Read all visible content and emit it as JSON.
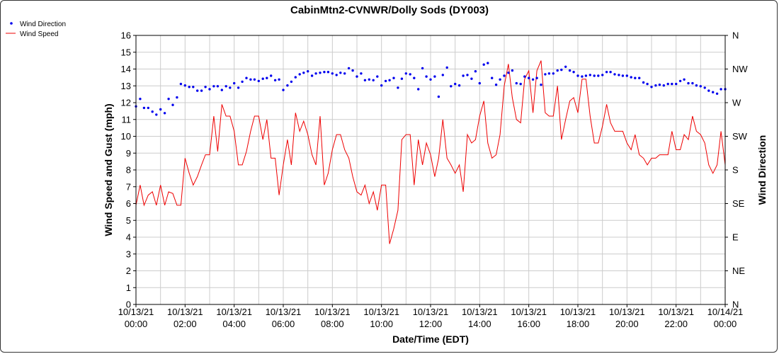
{
  "chart_data": {
    "type": "line",
    "title": "CabinMtn2-CVNWR/Dolly Sods (DY003)",
    "xlabel": "Date/Time (EDT)",
    "ylabel": "Wind Speed and Gust (mph)",
    "y2label": "Wind Direction",
    "ylim": [
      0,
      16
    ],
    "y2lim": [
      0,
      360
    ],
    "xlim_hours": [
      0,
      24
    ],
    "grid": true,
    "legend_position": "top-left",
    "colors": {
      "wind_direction": "#0000ee",
      "wind_speed": "#ee0000"
    },
    "y_ticks": [
      "0",
      "1",
      "2",
      "3",
      "4",
      "5",
      "6",
      "7",
      "8",
      "9",
      "10",
      "11",
      "12",
      "13",
      "14",
      "15",
      "16"
    ],
    "y2_ticks": [
      "N",
      "NE",
      "E",
      "SE",
      "S",
      "SW",
      "W",
      "NW",
      "N"
    ],
    "x_ticks": [
      {
        "date": "10/13/21",
        "time": "00:00"
      },
      {
        "date": "10/13/21",
        "time": "02:00"
      },
      {
        "date": "10/13/21",
        "time": "04:00"
      },
      {
        "date": "10/13/21",
        "time": "06:00"
      },
      {
        "date": "10/13/21",
        "time": "08:00"
      },
      {
        "date": "10/13/21",
        "time": "10:00"
      },
      {
        "date": "10/13/21",
        "time": "12:00"
      },
      {
        "date": "10/13/21",
        "time": "14:00"
      },
      {
        "date": "10/13/21",
        "time": "16:00"
      },
      {
        "date": "10/13/21",
        "time": "18:00"
      },
      {
        "date": "10/13/21",
        "time": "20:00"
      },
      {
        "date": "10/13/21",
        "time": "22:00"
      },
      {
        "date": "10/14/21",
        "time": "00:00"
      }
    ],
    "series": [
      {
        "name": "Wind Speed",
        "style": "line",
        "axis": "left",
        "points": [
          [
            0.0,
            5.9
          ],
          [
            0.17,
            7.1
          ],
          [
            0.33,
            5.9
          ],
          [
            0.5,
            6.5
          ],
          [
            0.67,
            6.7
          ],
          [
            0.83,
            5.9
          ],
          [
            1.0,
            7.1
          ],
          [
            1.17,
            5.9
          ],
          [
            1.33,
            6.7
          ],
          [
            1.5,
            6.6
          ],
          [
            1.67,
            5.9
          ],
          [
            1.83,
            5.9
          ],
          [
            2.0,
            8.7
          ],
          [
            2.17,
            7.8
          ],
          [
            2.33,
            7.1
          ],
          [
            2.5,
            7.6
          ],
          [
            2.67,
            8.3
          ],
          [
            2.83,
            8.9
          ],
          [
            3.0,
            8.9
          ],
          [
            3.17,
            11.2
          ],
          [
            3.33,
            9.1
          ],
          [
            3.5,
            11.9
          ],
          [
            3.67,
            11.2
          ],
          [
            3.83,
            11.2
          ],
          [
            4.0,
            10.3
          ],
          [
            4.17,
            8.3
          ],
          [
            4.33,
            8.3
          ],
          [
            4.5,
            9.1
          ],
          [
            4.67,
            10.3
          ],
          [
            4.83,
            11.2
          ],
          [
            5.0,
            11.2
          ],
          [
            5.17,
            9.8
          ],
          [
            5.33,
            11.0
          ],
          [
            5.5,
            8.7
          ],
          [
            5.67,
            8.7
          ],
          [
            5.83,
            6.5
          ],
          [
            6.0,
            8.3
          ],
          [
            6.17,
            9.8
          ],
          [
            6.33,
            8.3
          ],
          [
            6.5,
            11.4
          ],
          [
            6.67,
            10.3
          ],
          [
            6.83,
            10.9
          ],
          [
            7.0,
            10.1
          ],
          [
            7.17,
            8.9
          ],
          [
            7.33,
            8.3
          ],
          [
            7.5,
            11.2
          ],
          [
            7.67,
            7.1
          ],
          [
            7.83,
            7.8
          ],
          [
            8.0,
            9.2
          ],
          [
            8.17,
            10.1
          ],
          [
            8.33,
            10.1
          ],
          [
            8.5,
            9.2
          ],
          [
            8.67,
            8.7
          ],
          [
            8.83,
            7.6
          ],
          [
            9.0,
            6.7
          ],
          [
            9.17,
            6.5
          ],
          [
            9.33,
            7.1
          ],
          [
            9.5,
            6.0
          ],
          [
            9.67,
            6.7
          ],
          [
            9.83,
            5.6
          ],
          [
            10.0,
            7.1
          ],
          [
            10.17,
            7.1
          ],
          [
            10.33,
            3.6
          ],
          [
            10.5,
            4.5
          ],
          [
            10.67,
            5.6
          ],
          [
            10.83,
            9.8
          ],
          [
            11.0,
            10.1
          ],
          [
            11.17,
            10.1
          ],
          [
            11.33,
            7.1
          ],
          [
            11.5,
            9.8
          ],
          [
            11.67,
            8.3
          ],
          [
            11.83,
            9.6
          ],
          [
            12.0,
            8.9
          ],
          [
            12.17,
            7.6
          ],
          [
            12.33,
            8.7
          ],
          [
            12.5,
            11.0
          ],
          [
            12.67,
            8.7
          ],
          [
            12.83,
            8.3
          ],
          [
            13.0,
            7.8
          ],
          [
            13.17,
            8.3
          ],
          [
            13.33,
            6.7
          ],
          [
            13.5,
            10.1
          ],
          [
            13.67,
            9.6
          ],
          [
            13.83,
            9.8
          ],
          [
            14.0,
            11.2
          ],
          [
            14.17,
            12.1
          ],
          [
            14.33,
            9.6
          ],
          [
            14.5,
            8.7
          ],
          [
            14.67,
            8.9
          ],
          [
            14.83,
            10.1
          ],
          [
            15.0,
            13.0
          ],
          [
            15.17,
            14.3
          ],
          [
            15.33,
            12.3
          ],
          [
            15.5,
            11.0
          ],
          [
            15.67,
            10.8
          ],
          [
            15.83,
            13.4
          ],
          [
            16.0,
            13.9
          ],
          [
            16.17,
            11.4
          ],
          [
            16.33,
            13.9
          ],
          [
            16.5,
            14.5
          ],
          [
            16.67,
            11.4
          ],
          [
            16.83,
            11.2
          ],
          [
            17.0,
            11.2
          ],
          [
            17.17,
            13.0
          ],
          [
            17.33,
            9.8
          ],
          [
            17.5,
            11.0
          ],
          [
            17.67,
            12.1
          ],
          [
            17.83,
            12.3
          ],
          [
            18.0,
            11.4
          ],
          [
            18.17,
            13.4
          ],
          [
            18.33,
            13.4
          ],
          [
            18.5,
            11.2
          ],
          [
            18.67,
            9.6
          ],
          [
            18.83,
            9.6
          ],
          [
            19.0,
            10.6
          ],
          [
            19.17,
            11.9
          ],
          [
            19.33,
            10.8
          ],
          [
            19.5,
            10.3
          ],
          [
            19.67,
            10.3
          ],
          [
            19.83,
            10.3
          ],
          [
            20.0,
            9.6
          ],
          [
            20.17,
            9.2
          ],
          [
            20.33,
            10.1
          ],
          [
            20.5,
            8.9
          ],
          [
            20.67,
            8.7
          ],
          [
            20.83,
            8.3
          ],
          [
            21.0,
            8.7
          ],
          [
            21.17,
            8.7
          ],
          [
            21.33,
            8.9
          ],
          [
            21.5,
            8.9
          ],
          [
            21.67,
            8.9
          ],
          [
            21.83,
            10.3
          ],
          [
            22.0,
            9.2
          ],
          [
            22.17,
            9.2
          ],
          [
            22.33,
            10.1
          ],
          [
            22.5,
            9.8
          ],
          [
            22.67,
            11.2
          ],
          [
            22.83,
            10.3
          ],
          [
            23.0,
            10.1
          ],
          [
            23.17,
            9.6
          ],
          [
            23.33,
            8.3
          ],
          [
            23.5,
            7.8
          ],
          [
            23.67,
            8.3
          ],
          [
            23.83,
            10.3
          ],
          [
            24.0,
            8.3
          ]
        ]
      },
      {
        "name": "Wind Direction",
        "style": "points",
        "axis": "right",
        "points": [
          [
            0.0,
            265
          ],
          [
            0.17,
            275
          ],
          [
            0.33,
            263
          ],
          [
            0.5,
            263
          ],
          [
            0.67,
            258
          ],
          [
            0.83,
            254
          ],
          [
            1.0,
            261
          ],
          [
            1.17,
            256
          ],
          [
            1.33,
            275
          ],
          [
            1.5,
            267
          ],
          [
            1.67,
            277
          ],
          [
            1.83,
            295
          ],
          [
            2.0,
            293
          ],
          [
            2.17,
            291
          ],
          [
            2.33,
            291
          ],
          [
            2.5,
            286
          ],
          [
            2.67,
            286
          ],
          [
            2.83,
            291
          ],
          [
            3.0,
            288
          ],
          [
            3.17,
            292
          ],
          [
            3.33,
            292
          ],
          [
            3.5,
            287
          ],
          [
            3.67,
            292
          ],
          [
            3.83,
            290
          ],
          [
            4.0,
            296
          ],
          [
            4.17,
            290
          ],
          [
            4.33,
            298
          ],
          [
            4.5,
            303
          ],
          [
            4.67,
            301
          ],
          [
            4.83,
            301
          ],
          [
            5.0,
            299
          ],
          [
            5.17,
            302
          ],
          [
            5.33,
            303
          ],
          [
            5.5,
            306
          ],
          [
            5.67,
            300
          ],
          [
            5.83,
            301
          ],
          [
            6.0,
            287
          ],
          [
            6.17,
            293
          ],
          [
            6.33,
            298
          ],
          [
            6.5,
            304
          ],
          [
            6.67,
            308
          ],
          [
            6.83,
            310
          ],
          [
            7.0,
            312
          ],
          [
            7.17,
            306
          ],
          [
            7.33,
            309
          ],
          [
            7.5,
            310
          ],
          [
            7.67,
            311
          ],
          [
            7.83,
            311
          ],
          [
            8.0,
            309
          ],
          [
            8.17,
            307
          ],
          [
            8.33,
            310
          ],
          [
            8.5,
            309
          ],
          [
            8.67,
            316
          ],
          [
            8.83,
            313
          ],
          [
            9.0,
            305
          ],
          [
            9.17,
            309
          ],
          [
            9.33,
            300
          ],
          [
            9.5,
            301
          ],
          [
            9.67,
            300
          ],
          [
            9.83,
            305
          ],
          [
            10.0,
            293
          ],
          [
            10.17,
            299
          ],
          [
            10.33,
            300
          ],
          [
            10.5,
            303
          ],
          [
            10.67,
            290
          ],
          [
            10.83,
            302
          ],
          [
            11.0,
            309
          ],
          [
            11.17,
            308
          ],
          [
            11.33,
            303
          ],
          [
            11.5,
            288
          ],
          [
            11.67,
            316
          ],
          [
            11.83,
            305
          ],
          [
            12.0,
            301
          ],
          [
            12.17,
            305
          ],
          [
            12.33,
            278
          ],
          [
            12.5,
            307
          ],
          [
            12.67,
            317
          ],
          [
            12.83,
            292
          ],
          [
            13.0,
            295
          ],
          [
            13.17,
            293
          ],
          [
            13.33,
            306
          ],
          [
            13.5,
            307
          ],
          [
            13.67,
            302
          ],
          [
            13.83,
            312
          ],
          [
            14.0,
            296
          ],
          [
            14.17,
            321
          ],
          [
            14.33,
            323
          ],
          [
            14.5,
            303
          ],
          [
            14.67,
            294
          ],
          [
            14.83,
            301
          ],
          [
            15.0,
            306
          ],
          [
            15.17,
            310
          ],
          [
            15.33,
            313
          ],
          [
            15.5,
            296
          ],
          [
            15.67,
            295
          ],
          [
            15.83,
            305
          ],
          [
            16.0,
            303
          ],
          [
            16.17,
            301
          ],
          [
            16.33,
            303
          ],
          [
            16.5,
            294
          ],
          [
            16.67,
            308
          ],
          [
            16.83,
            309
          ],
          [
            17.0,
            309
          ],
          [
            17.17,
            313
          ],
          [
            17.33,
            314
          ],
          [
            17.5,
            318
          ],
          [
            17.67,
            313
          ],
          [
            17.83,
            311
          ],
          [
            18.0,
            306
          ],
          [
            18.17,
            305
          ],
          [
            18.33,
            306
          ],
          [
            18.5,
            307
          ],
          [
            18.67,
            306
          ],
          [
            18.83,
            306
          ],
          [
            19.0,
            307
          ],
          [
            19.17,
            311
          ],
          [
            19.33,
            311
          ],
          [
            19.5,
            308
          ],
          [
            19.67,
            307
          ],
          [
            19.83,
            306
          ],
          [
            20.0,
            306
          ],
          [
            20.17,
            304
          ],
          [
            20.33,
            303
          ],
          [
            20.5,
            303
          ],
          [
            20.67,
            297
          ],
          [
            20.83,
            295
          ],
          [
            21.0,
            291
          ],
          [
            21.17,
            293
          ],
          [
            21.33,
            294
          ],
          [
            21.5,
            293
          ],
          [
            21.67,
            295
          ],
          [
            21.83,
            295
          ],
          [
            22.0,
            295
          ],
          [
            22.17,
            299
          ],
          [
            22.33,
            301
          ],
          [
            22.5,
            296
          ],
          [
            22.67,
            296
          ],
          [
            22.83,
            293
          ],
          [
            23.0,
            292
          ],
          [
            23.17,
            290
          ],
          [
            23.33,
            286
          ],
          [
            23.5,
            284
          ],
          [
            23.67,
            282
          ],
          [
            23.83,
            288
          ],
          [
            24.0,
            288
          ]
        ]
      }
    ]
  }
}
